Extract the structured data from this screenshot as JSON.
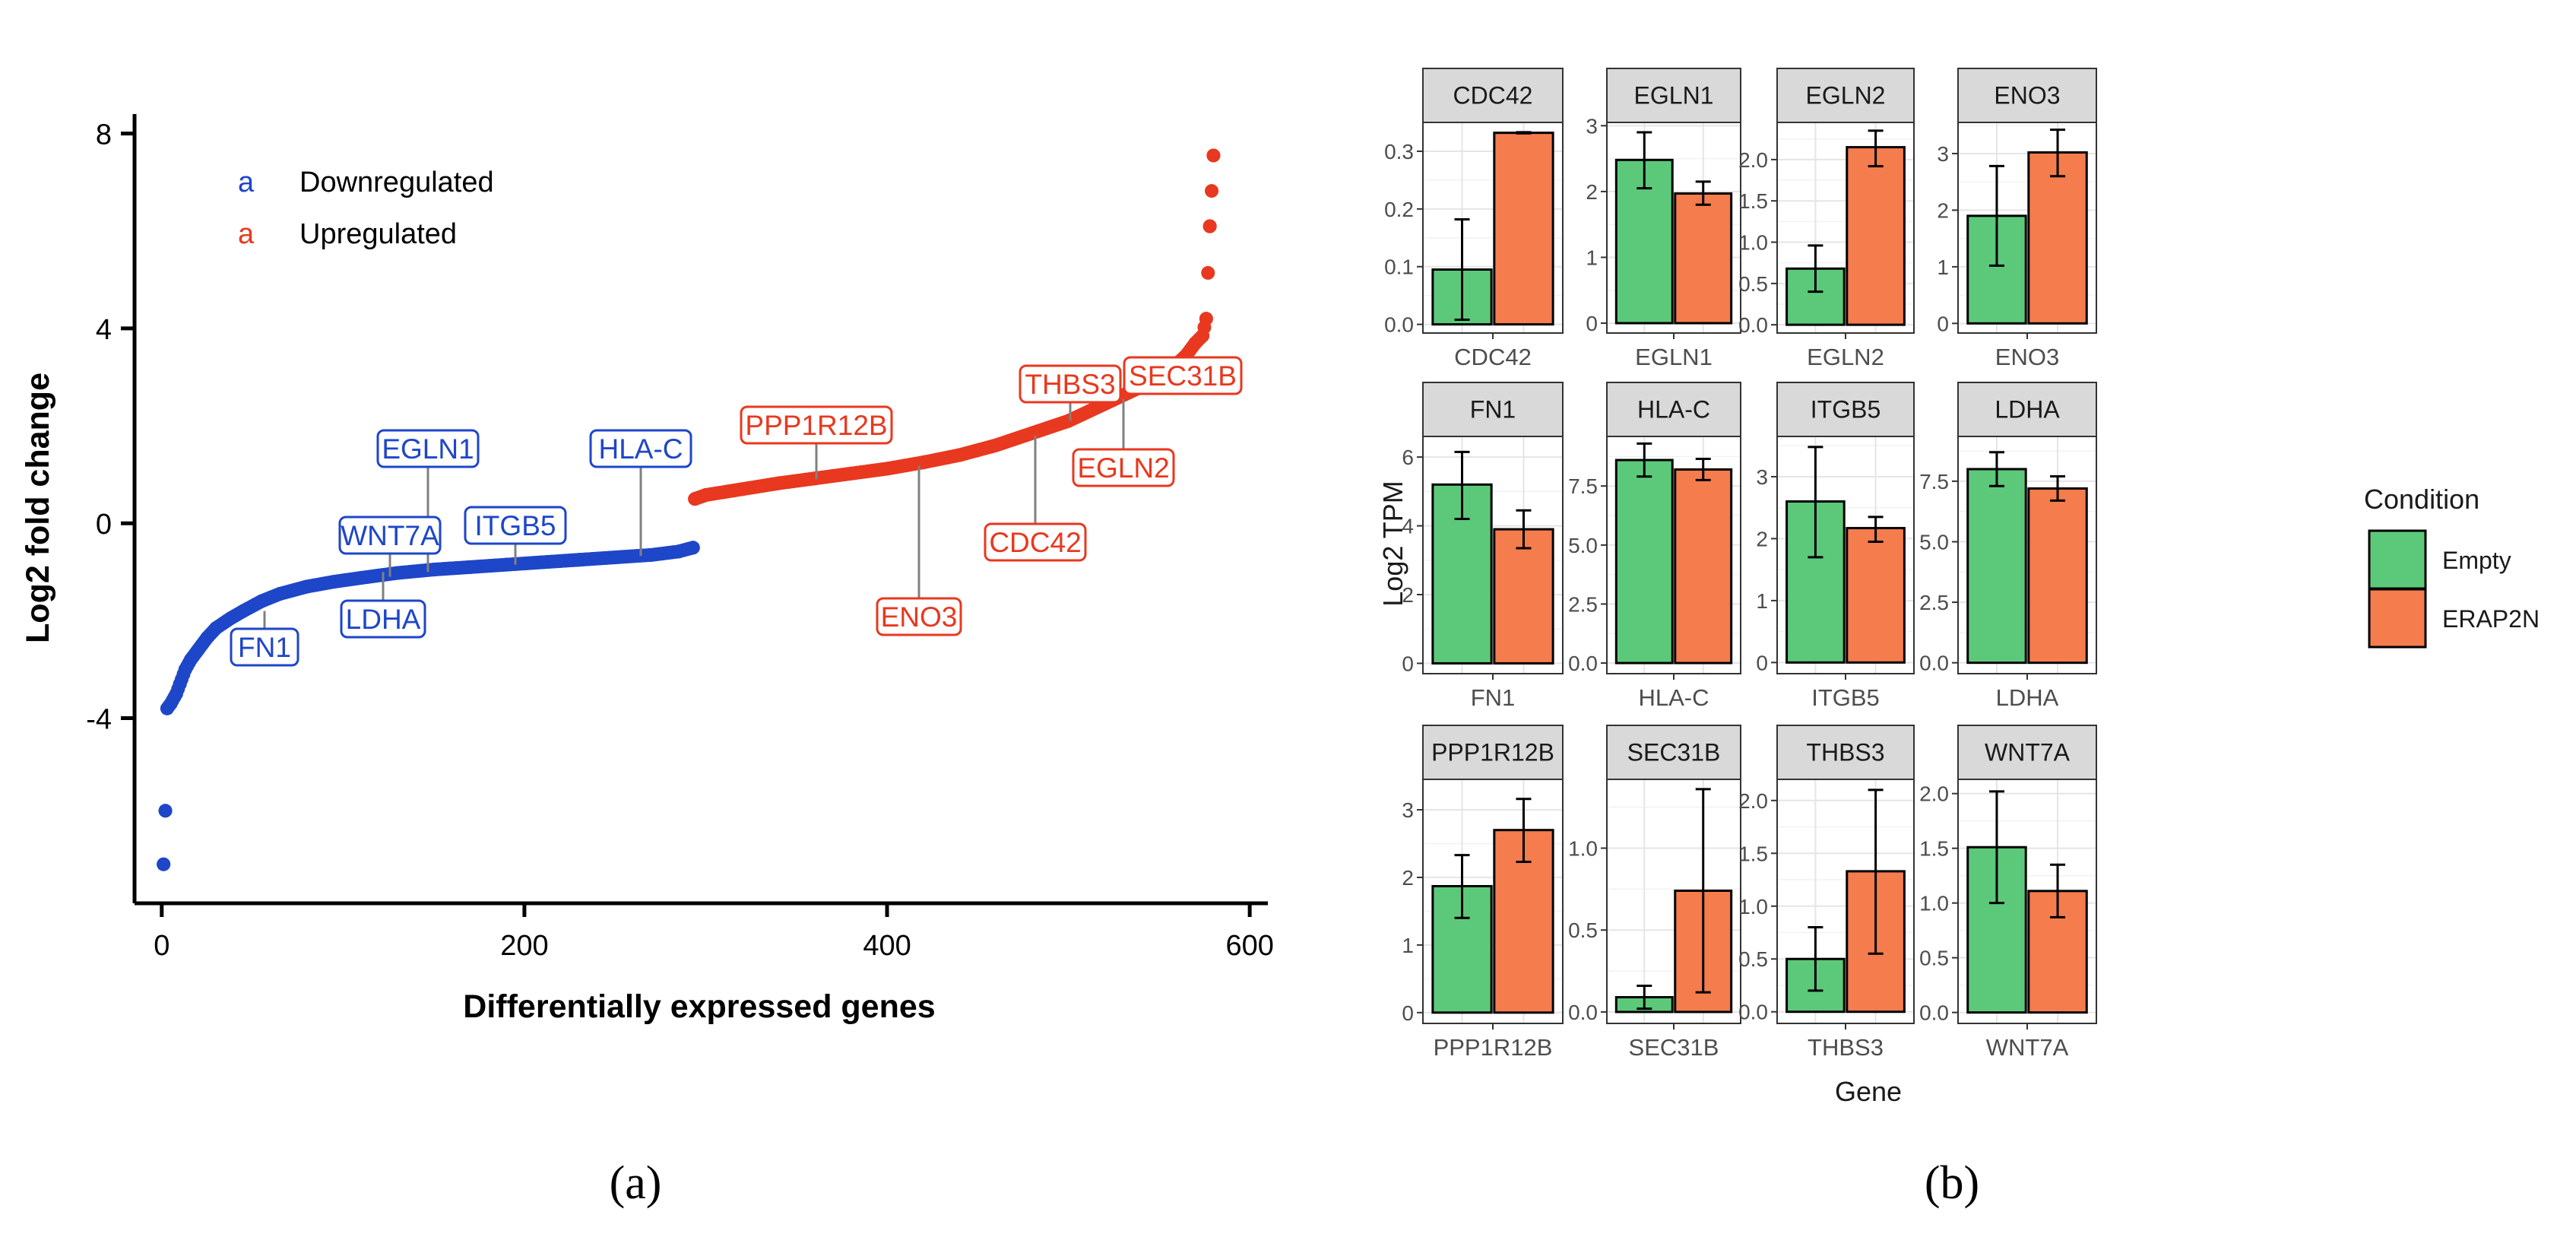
{
  "chart_data": [
    {
      "type": "scatter",
      "panel_label": "(a)",
      "xlabel": "Differentially expressed genes",
      "ylabel": "Log2 fold change",
      "xlim": [
        -15,
        610
      ],
      "ylim": [
        -7.8,
        8.4
      ],
      "xticks": [
        0,
        200,
        400,
        600
      ],
      "xtick_labels": [
        "0",
        "200",
        "400",
        "600"
      ],
      "yticks": [
        -4,
        0,
        4,
        8
      ],
      "ytick_labels": [
        "-4",
        "0",
        "4",
        "8"
      ],
      "legend": {
        "placement": "top-left",
        "entries": [
          {
            "key": "a",
            "label": "Downregulated",
            "color": "#1e46c8"
          },
          {
            "key": "a",
            "label": "Upregulated",
            "color": "#e8381f"
          }
        ]
      },
      "series": [
        {
          "name": "Downregulated",
          "color": "#1e46c8",
          "n_points": 293,
          "x_range": [
            1,
            293
          ],
          "shape_points": [
            [
              1,
              -7.0
            ],
            [
              2,
              -5.9
            ],
            [
              3,
              -3.8
            ],
            [
              5,
              -3.7
            ],
            [
              8,
              -3.5
            ],
            [
              10,
              -3.3
            ],
            [
              13,
              -3.0
            ],
            [
              16,
              -2.8
            ],
            [
              20,
              -2.6
            ],
            [
              25,
              -2.35
            ],
            [
              30,
              -2.15
            ],
            [
              38,
              -1.95
            ],
            [
              45,
              -1.8
            ],
            [
              55,
              -1.6
            ],
            [
              65,
              -1.45
            ],
            [
              80,
              -1.3
            ],
            [
              95,
              -1.2
            ],
            [
              110,
              -1.12
            ],
            [
              130,
              -1.02
            ],
            [
              150,
              -0.95
            ],
            [
              170,
              -0.9
            ],
            [
              190,
              -0.85
            ],
            [
              210,
              -0.8
            ],
            [
              230,
              -0.75
            ],
            [
              250,
              -0.7
            ],
            [
              270,
              -0.65
            ],
            [
              285,
              -0.58
            ],
            [
              293,
              -0.5
            ]
          ]
        },
        {
          "name": "Upregulated",
          "color": "#e8381f",
          "n_points": 286,
          "x_range": [
            294,
            580
          ],
          "shape_points": [
            [
              294,
              0.5
            ],
            [
              300,
              0.58
            ],
            [
              320,
              0.7
            ],
            [
              340,
              0.82
            ],
            [
              360,
              0.92
            ],
            [
              380,
              1.02
            ],
            [
              400,
              1.12
            ],
            [
              420,
              1.25
            ],
            [
              440,
              1.4
            ],
            [
              460,
              1.6
            ],
            [
              480,
              1.85
            ],
            [
              500,
              2.1
            ],
            [
              520,
              2.45
            ],
            [
              540,
              2.8
            ],
            [
              555,
              3.1
            ],
            [
              565,
              3.45
            ],
            [
              570,
              3.7
            ],
            [
              574,
              3.85
            ],
            [
              576,
              4.2
            ],
            [
              578,
              6.1
            ],
            [
              580,
              7.55
            ]
          ]
        }
      ],
      "annotations": [
        {
          "label": "EGLN1",
          "group": "down",
          "x": 138,
          "y": -1.0
        },
        {
          "label": "HLA-C",
          "group": "down",
          "x": 258,
          "y": -0.67
        },
        {
          "label": "WNT7A",
          "group": "down",
          "x": 117,
          "y": -1.1
        },
        {
          "label": "ITGB5",
          "group": "down",
          "x": 188,
          "y": -0.85
        },
        {
          "label": "LDHA",
          "group": "down",
          "x": 140,
          "y": -1.0
        },
        {
          "label": "FN1",
          "group": "down",
          "x": 45,
          "y": -1.8
        },
        {
          "label": "PPP1R12B",
          "group": "up",
          "x": 356,
          "y": 0.9
        },
        {
          "label": "THBS3",
          "group": "up",
          "x": 501,
          "y": 2.1
        },
        {
          "label": "SEC31B",
          "group": "up",
          "x": 552,
          "y": 3.0
        },
        {
          "label": "ENO3",
          "group": "up",
          "x": 417,
          "y": 1.18
        },
        {
          "label": "CDC42",
          "group": "up",
          "x": 477,
          "y": 1.8
        },
        {
          "label": "EGLN2",
          "group": "up",
          "x": 528,
          "y": 2.55
        }
      ]
    },
    {
      "type": "bar",
      "panel_label": "(b)",
      "xlabel": "Gene",
      "ylabel": "Log2 TPM",
      "legend": {
        "title": "Condition",
        "placement": "right",
        "entries": [
          {
            "label": "Empty",
            "color": "#5cc97a"
          },
          {
            "label": "ERAP2N",
            "color": "#f57c4d"
          }
        ]
      },
      "conditions": [
        "Empty",
        "ERAP2N"
      ],
      "facets": [
        {
          "gene": "CDC42",
          "ylim": [
            -0.015,
            0.35
          ],
          "yticks": [
            0,
            0.1,
            0.2,
            0.3
          ],
          "ytick_labels": [
            "0.0",
            "0.1",
            "0.2",
            "0.3"
          ],
          "values": [
            0.095,
            0.332
          ],
          "errors": [
            [
              0.008,
              0.182
            ],
            [
              0.331,
              0.333
            ]
          ]
        },
        {
          "gene": "EGLN1",
          "ylim": [
            -0.15,
            3.05
          ],
          "yticks": [
            0,
            1,
            2,
            3
          ],
          "ytick_labels": [
            "0",
            "1",
            "2",
            "3"
          ],
          "values": [
            2.48,
            1.97
          ],
          "errors": [
            [
              2.05,
              2.9
            ],
            [
              1.8,
              2.15
            ]
          ]
        },
        {
          "gene": "EGLN2",
          "ylim": [
            -0.1,
            2.45
          ],
          "yticks": [
            0,
            0.5,
            1.0,
            1.5,
            2.0
          ],
          "ytick_labels": [
            "0.0",
            "0.5",
            "1.0",
            "1.5",
            "2.0"
          ],
          "values": [
            0.68,
            2.15
          ],
          "errors": [
            [
              0.4,
              0.96
            ],
            [
              1.92,
              2.35
            ]
          ]
        },
        {
          "gene": "ENO3",
          "ylim": [
            -0.17,
            3.55
          ],
          "yticks": [
            0,
            1,
            2,
            3
          ],
          "ytick_labels": [
            "0",
            "1",
            "2",
            "3"
          ],
          "values": [
            1.9,
            3.02
          ],
          "errors": [
            [
              1.02,
              2.78
            ],
            [
              2.6,
              3.42
            ]
          ]
        },
        {
          "gene": "FN1",
          "ylim": [
            -0.3,
            6.6
          ],
          "yticks": [
            0,
            2,
            4,
            6
          ],
          "ytick_labels": [
            "0",
            "2",
            "4",
            "6"
          ],
          "values": [
            5.2,
            3.9
          ],
          "errors": [
            [
              4.2,
              6.15
            ],
            [
              3.35,
              4.45
            ]
          ]
        },
        {
          "gene": "HLA-C",
          "ylim": [
            -0.45,
            9.6
          ],
          "yticks": [
            0,
            2.5,
            5.0,
            7.5
          ],
          "ytick_labels": [
            "0.0",
            "2.5",
            "5.0",
            "7.5"
          ],
          "values": [
            8.6,
            8.2
          ],
          "errors": [
            [
              7.9,
              9.3
            ],
            [
              7.75,
              8.65
            ]
          ]
        },
        {
          "gene": "ITGB5",
          "ylim": [
            -0.18,
            3.65
          ],
          "yticks": [
            0,
            1,
            2,
            3
          ],
          "ytick_labels": [
            "0",
            "1",
            "2",
            "3"
          ],
          "values": [
            2.6,
            2.17
          ],
          "errors": [
            [
              1.7,
              3.48
            ],
            [
              1.95,
              2.35
            ]
          ]
        },
        {
          "gene": "LDHA",
          "ylim": [
            -0.45,
            9.35
          ],
          "yticks": [
            0,
            2.5,
            5.0,
            7.5
          ],
          "ytick_labels": [
            "0.0",
            "2.5",
            "5.0",
            "7.5"
          ],
          "values": [
            8.0,
            7.2
          ],
          "errors": [
            [
              7.3,
              8.7
            ],
            [
              6.7,
              7.7
            ]
          ]
        },
        {
          "gene": "PPP1R12B",
          "ylim": [
            -0.16,
            3.45
          ],
          "yticks": [
            0,
            1,
            2,
            3
          ],
          "ytick_labels": [
            "0",
            "1",
            "2",
            "3"
          ],
          "values": [
            1.87,
            2.7
          ],
          "errors": [
            [
              1.4,
              2.33
            ],
            [
              2.23,
              3.16
            ]
          ]
        },
        {
          "gene": "SEC31B",
          "ylim": [
            -0.07,
            1.42
          ],
          "yticks": [
            0,
            0.5,
            1.0
          ],
          "ytick_labels": [
            "0.0",
            "0.5",
            "1.0"
          ],
          "values": [
            0.09,
            0.74
          ],
          "errors": [
            [
              0.02,
              0.16
            ],
            [
              0.12,
              1.36
            ]
          ]
        },
        {
          "gene": "THBS3",
          "ylim": [
            -0.11,
            2.2
          ],
          "yticks": [
            0,
            0.5,
            1.0,
            1.5,
            2.0
          ],
          "ytick_labels": [
            "0.0",
            "0.5",
            "1.0",
            "1.5",
            "2.0"
          ],
          "values": [
            0.5,
            1.33
          ],
          "errors": [
            [
              0.2,
              0.8
            ],
            [
              0.55,
              2.1
            ]
          ]
        },
        {
          "gene": "WNT7A",
          "ylim": [
            -0.1,
            2.13
          ],
          "yticks": [
            0,
            0.5,
            1.0,
            1.5,
            2.0
          ],
          "ytick_labels": [
            "0.0",
            "0.5",
            "1.0",
            "1.5",
            "2.0"
          ],
          "values": [
            1.51,
            1.11
          ],
          "errors": [
            [
              1.0,
              2.02
            ],
            [
              0.87,
              1.35
            ]
          ]
        }
      ]
    }
  ]
}
